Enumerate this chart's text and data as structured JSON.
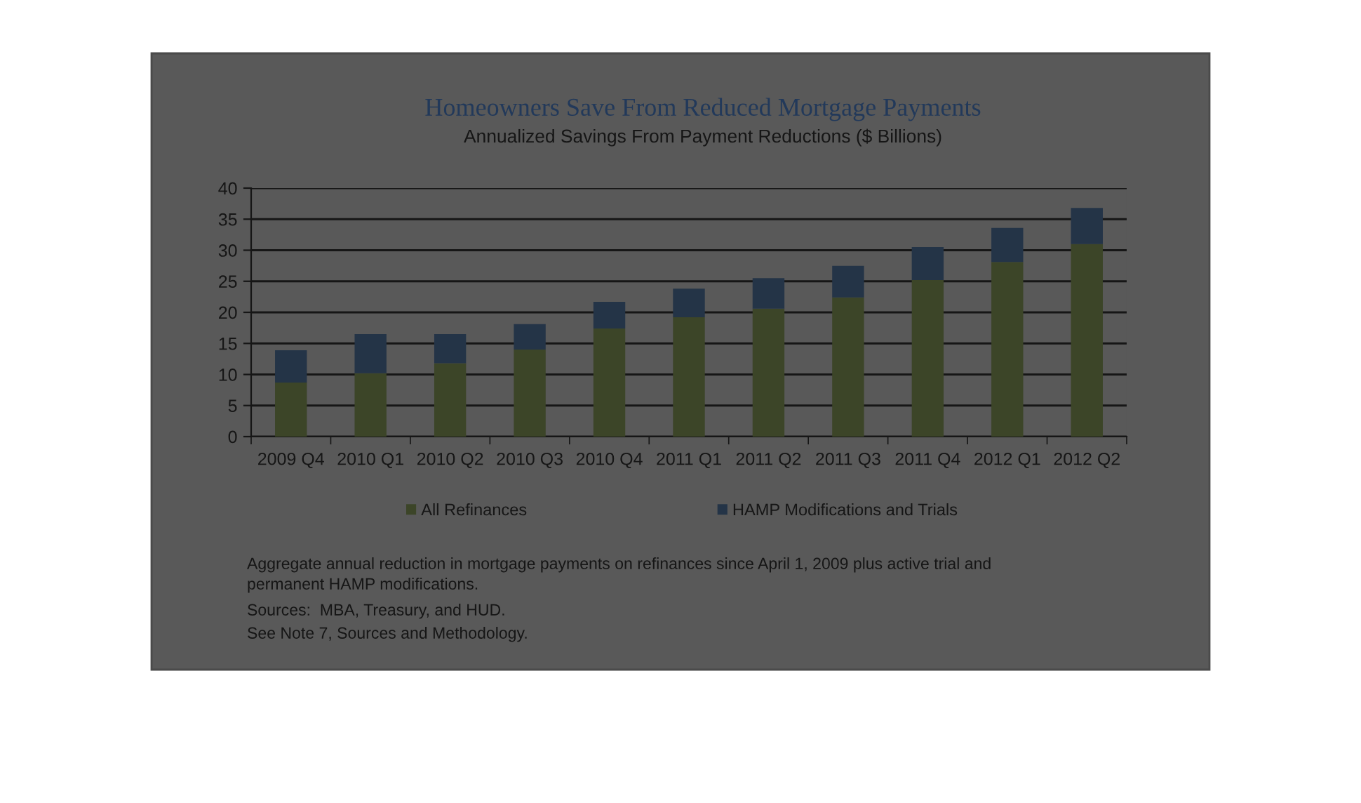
{
  "chart_data": {
    "type": "bar",
    "title": "Homeowners Save From Reduced Mortgage Payments",
    "subtitle": "Annualized Savings From Payment Reductions ($ Billions)",
    "categories": [
      "2009 Q4",
      "2010 Q1",
      "2010 Q2",
      "2010 Q3",
      "2010 Q4",
      "2011 Q1",
      "2011 Q2",
      "2011 Q3",
      "2011 Q4",
      "2012 Q1",
      "2012 Q2"
    ],
    "stacked": true,
    "series": [
      {
        "name": "All Refinances",
        "color": "#3c4528",
        "values": [
          8.7,
          10.2,
          11.8,
          14.0,
          17.4,
          19.2,
          20.6,
          22.4,
          25.2,
          28.1,
          31.0
        ]
      },
      {
        "name": "HAMP Modifications and Trials",
        "color": "#243447",
        "values": [
          5.2,
          6.3,
          4.7,
          4.1,
          4.3,
          4.6,
          4.9,
          5.1,
          5.3,
          5.5,
          5.8
        ]
      }
    ],
    "ylim": [
      0,
      40
    ],
    "yticks": [
      0,
      5,
      10,
      15,
      20,
      25,
      30,
      35,
      40
    ],
    "grid": "y",
    "legend": "bottom",
    "annotations": [
      "Aggregate annual reduction in mortgage payments on refinances since April 1, 2009 plus active trial and\npermanent HAMP modifications.",
      "Sources:  MBA, Treasury, and HUD.",
      "See Note 7, Sources and Methodology."
    ]
  }
}
